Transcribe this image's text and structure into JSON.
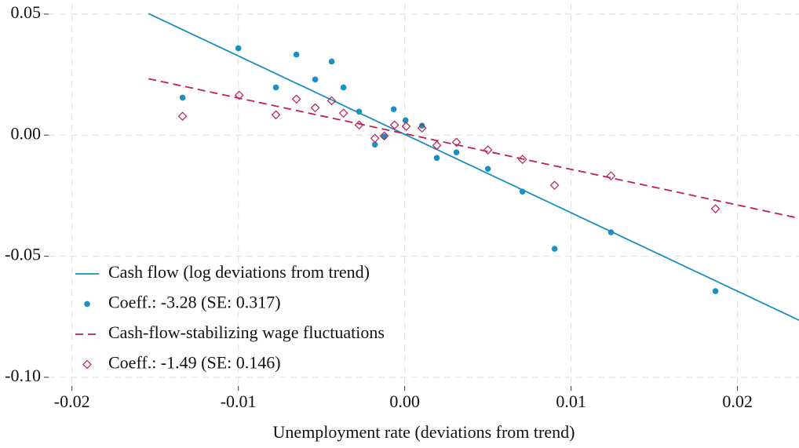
{
  "chart_data": {
    "type": "scatter",
    "x_label": "Unemployment rate (deviations from trend)",
    "xlim": [
      -0.0214,
      0.0237
    ],
    "ylim": [
      -0.1036,
      0.0542
    ],
    "xticks": [
      -0.02,
      -0.01,
      {
        "value": 0,
        "label": "0.00"
      },
      0.01,
      0.02
    ],
    "yticks": [
      0.05,
      {
        "value": 0,
        "label": "0.00"
      },
      -0.05,
      {
        "value": -0.1,
        "label": "-0.10"
      }
    ],
    "grid": true,
    "legend": "lower left",
    "series": [
      {
        "name": "Cash flow (log deviations from trend)",
        "color": "#1a8fc0",
        "kind": "line",
        "style": "solid",
        "x": [
          -0.0154,
          0.0237
        ],
        "values": [
          0.0502,
          -0.0764
        ]
      },
      {
        "name": "Coeff.: -3.28 (SE: 0.317)",
        "color": "#1a8fc0",
        "kind": "points",
        "marker": "circle",
        "x": [
          -0.01335,
          -0.01,
          -0.00774,
          -0.00651,
          -0.00538,
          -0.00439,
          -0.00368,
          -0.00274,
          -0.00179,
          -0.00123,
          -0.00066,
          5e-05,
          0.00104,
          0.00193,
          0.00311,
          0.005,
          0.00708,
          0.00901,
          0.0124,
          0.01868
        ],
        "values": [
          0.0155,
          0.0359,
          0.0197,
          0.0333,
          0.023,
          0.0304,
          0.0197,
          0.0097,
          -0.0039,
          -0.0006,
          0.0107,
          0.0061,
          0.0039,
          -0.0094,
          -0.0071,
          -0.0139,
          -0.0233,
          -0.0469,
          -0.0401,
          -0.0644
        ]
      },
      {
        "name": "Cash-flow-stabilizing wage fluctuations",
        "color": "#c0204a",
        "kind": "line",
        "style": "dashed",
        "x": [
          -0.0154,
          0.0237
        ],
        "values": [
          0.0233,
          -0.0343
        ]
      },
      {
        "name": "Coeff.: -1.49 (SE: 0.146)",
        "color": "#c0204a",
        "kind": "points",
        "marker": "diamond",
        "x": [
          -0.01335,
          -0.00995,
          -0.00774,
          -0.00651,
          -0.00538,
          -0.00439,
          -0.00368,
          -0.00274,
          -0.00179,
          -0.00123,
          -0.00061,
          9e-05,
          0.00104,
          0.00193,
          0.00311,
          0.005,
          0.00708,
          0.00901,
          0.0124,
          0.01868
        ],
        "values": [
          0.0078,
          0.0165,
          0.0084,
          0.0149,
          0.0113,
          0.0142,
          0.0091,
          0.0042,
          -0.0013,
          -0.0003,
          0.0042,
          0.0036,
          0.0029,
          -0.0042,
          -0.0029,
          -0.0061,
          -0.01,
          -0.0207,
          -0.0168,
          -0.0304
        ]
      }
    ]
  }
}
